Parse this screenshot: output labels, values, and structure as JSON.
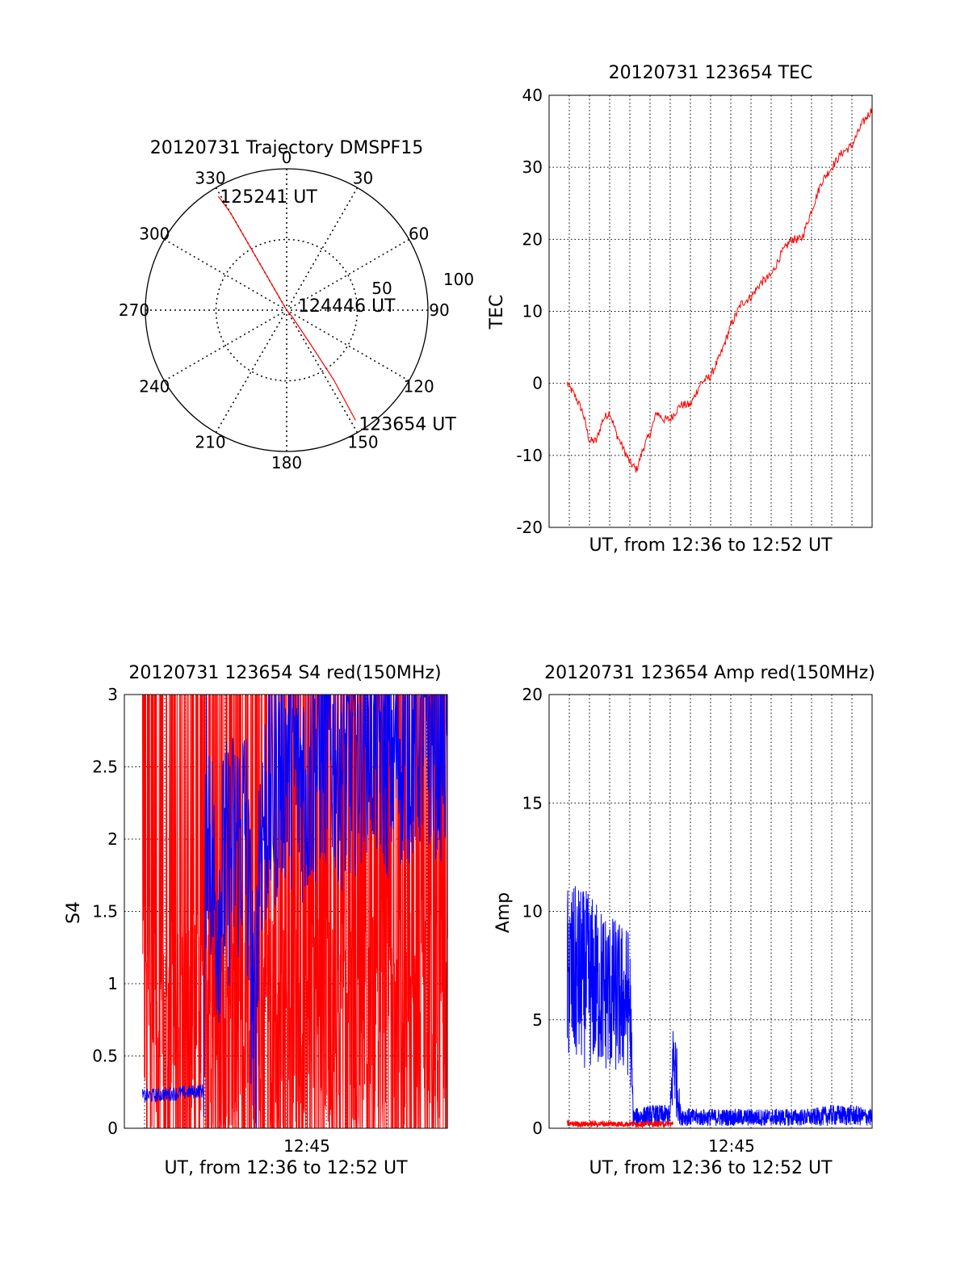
{
  "chart_data": [
    {
      "type": "polar",
      "title": "20120731 Trajectory DMSPF15",
      "angle_labels": [
        "0",
        "30",
        "60",
        "90",
        "120",
        "150",
        "180",
        "210",
        "240",
        "270",
        "300",
        "330"
      ],
      "radius_labels": [
        "50",
        "100"
      ],
      "rlim": [
        0,
        100
      ],
      "grid": true,
      "series": [
        {
          "color": "#ff0000",
          "points": [
            {
              "azimuth": 148,
              "radius": 92
            },
            {
              "azimuth": 146,
              "radius": 60
            },
            {
              "azimuth": 145,
              "radius": 30
            },
            {
              "azimuth": 140,
              "radius": 6
            },
            {
              "azimuth": 0,
              "radius": 0
            },
            {
              "azimuth": 330,
              "radius": 20
            },
            {
              "azimuth": 330,
              "radius": 50
            },
            {
              "azimuth": 330,
              "radius": 80
            },
            {
              "azimuth": 329,
              "radius": 94
            }
          ]
        }
      ],
      "annotations": [
        {
          "text": "125241 UT",
          "azimuth": 329,
          "radius": 94
        },
        {
          "text": "124446 UT",
          "azimuth": 0,
          "radius": 0
        },
        {
          "text": "123654 UT",
          "azimuth": 148,
          "radius": 92
        }
      ]
    },
    {
      "type": "line",
      "title": "20120731 123654 TEC",
      "xlabel": "UT, from 12:36 to 12:52 UT",
      "ylabel": "TEC",
      "xlim": [
        "12:36",
        "12:52"
      ],
      "ylim": [
        -20,
        40
      ],
      "yticks": [
        "-20",
        "-10",
        "0",
        "10",
        "20",
        "30",
        "40"
      ],
      "xticks": [],
      "grid": true,
      "series": [
        {
          "color": "#ff0000",
          "x": [
            "12:36:54",
            "12:37:20",
            "12:37:40",
            "12:38:00",
            "12:38:20",
            "12:38:40",
            "12:39:00",
            "12:39:20",
            "12:39:40",
            "12:40:00",
            "12:40:20",
            "12:40:40",
            "12:41:00",
            "12:41:20",
            "12:41:40",
            "12:42:00",
            "12:42:30",
            "12:43:00",
            "12:43:30",
            "12:44:00",
            "12:44:30",
            "12:45:00",
            "12:45:30",
            "12:46:00",
            "12:46:30",
            "12:47:00",
            "12:47:30",
            "12:48:00",
            "12:48:30",
            "12:49:00",
            "12:49:30",
            "12:50:00",
            "12:50:30",
            "12:51:00",
            "12:51:30",
            "12:51:59"
          ],
          "y": [
            0,
            -2,
            -4,
            -8,
            -8,
            -5,
            -4,
            -7,
            -9,
            -11,
            -12,
            -9,
            -7,
            -4,
            -5,
            -5,
            -3,
            -3,
            0,
            1,
            4,
            8,
            11,
            12,
            14,
            15,
            18,
            20,
            20,
            24,
            28,
            30,
            32,
            33,
            36,
            38
          ]
        }
      ]
    },
    {
      "type": "line",
      "title": "20120731 123654 S4 red(150MHz)",
      "xlabel": "UT, from 12:36 to 12:52 UT",
      "ylabel": "S4",
      "xlim": [
        "12:36",
        "12:52"
      ],
      "ylim": [
        0,
        3
      ],
      "yticks": [
        "0",
        "0.5",
        "1",
        "1.5",
        "2",
        "2.5",
        "3"
      ],
      "xticks": [
        "12:45"
      ],
      "grid": true,
      "series": [
        {
          "color": "#ff0000",
          "style": "dense oscillation between 0 and 3",
          "x_range": [
            "12:36:54",
            "12:52:00"
          ],
          "y_range": [
            0,
            3
          ]
        },
        {
          "color": "#0000ff",
          "x": [
            "12:36:54",
            "12:38:30",
            "12:39:55",
            "12:40:05",
            "12:40:30",
            "12:41:00",
            "12:42:00",
            "12:42:30",
            "12:42:40",
            "12:43:00",
            "12:44:00",
            "12:45:00",
            "12:46:00",
            "12:47:00",
            "12:48:00",
            "12:49:00",
            "12:50:00",
            "12:51:00",
            "12:52:00"
          ],
          "y": [
            0.22,
            0.24,
            0.26,
            2.4,
            1.5,
            1.8,
            2.1,
            0.45,
            2.0,
            2.2,
            2.6,
            2.4,
            2.7,
            2.5,
            2.8,
            2.6,
            2.7,
            2.8,
            2.7
          ]
        }
      ]
    },
    {
      "type": "line",
      "title": "20120731 123654 Amp red(150MHz)",
      "xlabel": "UT, from 12:36 to 12:52 UT",
      "ylabel": "Amp",
      "xlim": [
        "12:36",
        "12:52"
      ],
      "ylim": [
        0,
        20
      ],
      "yticks": [
        "0",
        "5",
        "10",
        "15",
        "20"
      ],
      "xticks": [
        "12:45"
      ],
      "grid": true,
      "series": [
        {
          "color": "#0000ff",
          "x": [
            "12:36:54",
            "12:37:30",
            "12:38:00",
            "12:38:30",
            "12:39:00",
            "12:39:30",
            "12:40:00",
            "12:40:10",
            "12:41:00",
            "12:42:00",
            "12:42:10",
            "12:42:30",
            "12:43:00",
            "12:44:00",
            "12:45:00",
            "12:46:00",
            "12:47:00",
            "12:48:00",
            "12:49:00",
            "12:50:00",
            "12:51:00",
            "12:52:00"
          ],
          "y": [
            7,
            7,
            6.8,
            6.5,
            6.2,
            6,
            5.8,
            0.5,
            0.6,
            0.6,
            3.5,
            0.6,
            0.5,
            0.5,
            0.5,
            0.5,
            0.5,
            0.5,
            0.5,
            0.6,
            0.6,
            0.5
          ]
        },
        {
          "color": "#ff0000",
          "x": [
            "12:36:54",
            "12:40:10",
            "12:42:10"
          ],
          "y": [
            0.2,
            0.2,
            0.15
          ]
        }
      ]
    }
  ]
}
